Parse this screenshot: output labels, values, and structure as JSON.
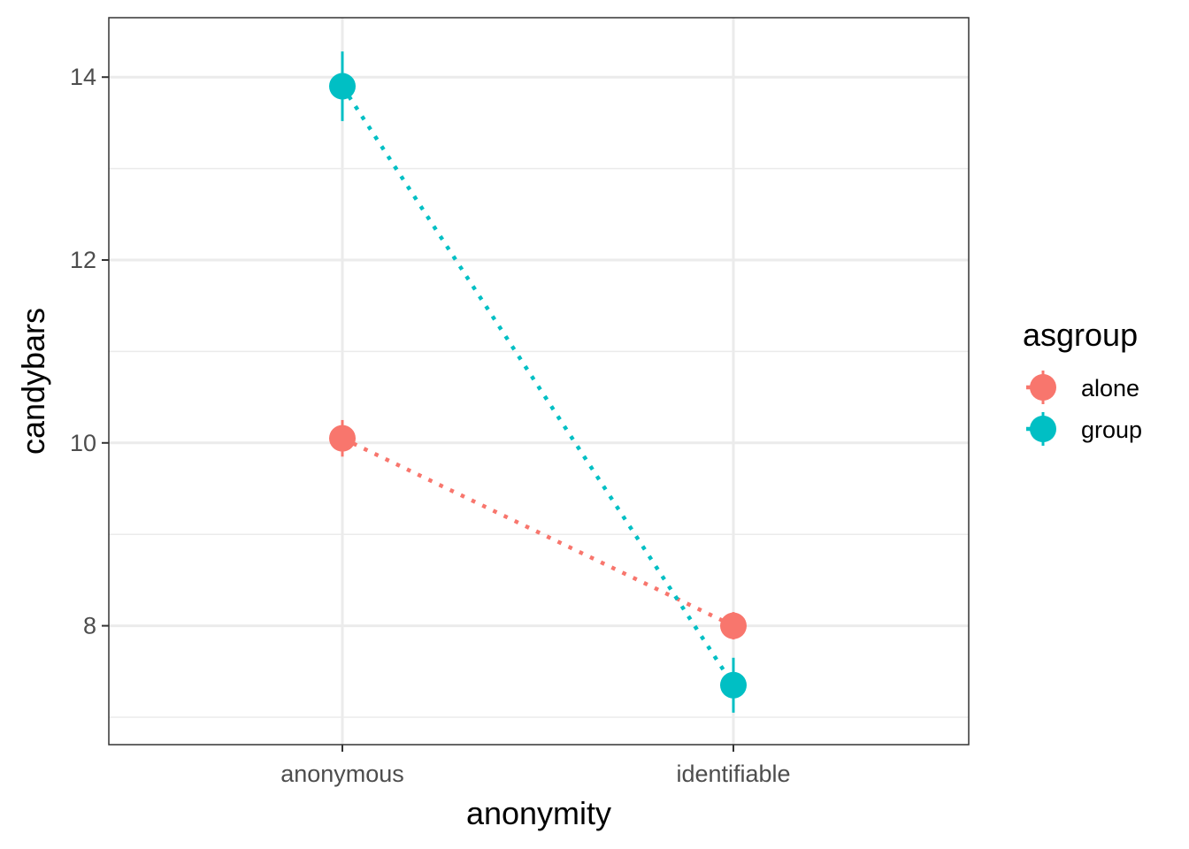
{
  "chart_data": {
    "type": "line",
    "categories": [
      "anonymous",
      "identifiable"
    ],
    "xlabel": "anonymity",
    "ylabel": "candybars",
    "ylim": [
      6.7,
      14.65
    ],
    "yticks": [
      8,
      10,
      12,
      14
    ],
    "y_minor_ticks": [
      7,
      9,
      11,
      13
    ],
    "grid": true,
    "line_style": "dotted",
    "legend": {
      "title": "asgroup",
      "position": "right"
    },
    "series": [
      {
        "name": "alone",
        "color": "#F8766D",
        "values": [
          10.05,
          8.0
        ],
        "lower": [
          9.85,
          7.85
        ],
        "upper": [
          10.25,
          8.15
        ]
      },
      {
        "name": "group",
        "color": "#00BFC4",
        "values": [
          13.9,
          7.35
        ],
        "lower": [
          13.52,
          7.05
        ],
        "upper": [
          14.28,
          7.65
        ]
      }
    ]
  }
}
